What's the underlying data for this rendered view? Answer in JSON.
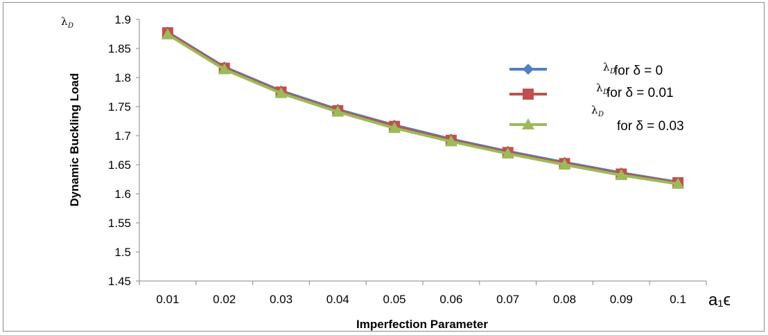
{
  "chart_data": {
    "type": "line",
    "title": "",
    "xlabel": "Imperfection Parameter",
    "ylabel": "Dynamic Buckling Load",
    "x_unit_label": "a₁ϵ",
    "y_corner_label": "λ",
    "y_corner_label_sub": "D",
    "categories": [
      "0.01",
      "0.02",
      "0.03",
      "0.04",
      "0.05",
      "0.06",
      "0.07",
      "0.08",
      "0.09",
      "0.1"
    ],
    "y_ticks": [
      "1.45",
      "1.5",
      "1.55",
      "1.6",
      "1.65",
      "1.7",
      "1.75",
      "1.8",
      "1.85",
      "1.9"
    ],
    "ylim": [
      1.45,
      1.9
    ],
    "grid": false,
    "legend_position": "right",
    "series": [
      {
        "name": "λD for δ = 0",
        "legend_lambda": "λ",
        "legend_sub": "D",
        "legend_text": "for  δ = 0",
        "color": "#4f81bd",
        "marker": "diamond",
        "values": [
          1.878,
          1.818,
          1.777,
          1.745,
          1.718,
          1.694,
          1.673,
          1.654,
          1.636,
          1.62
        ]
      },
      {
        "name": "λD for δ = 0.01",
        "legend_lambda": "λ",
        "legend_sub": "D",
        "legend_text": "for δ = 0.01",
        "color": "#c0504d",
        "marker": "square",
        "values": [
          1.877,
          1.816,
          1.775,
          1.743,
          1.716,
          1.692,
          1.671,
          1.652,
          1.634,
          1.619
        ]
      },
      {
        "name": "λD for δ = 0.03",
        "legend_lambda": "λ",
        "legend_sub": "D",
        "legend_text": "for δ = 0.03",
        "color": "#9bbb59",
        "marker": "triangle",
        "values": [
          1.874,
          1.814,
          1.773,
          1.741,
          1.713,
          1.69,
          1.669,
          1.65,
          1.632,
          1.617
        ]
      }
    ]
  }
}
